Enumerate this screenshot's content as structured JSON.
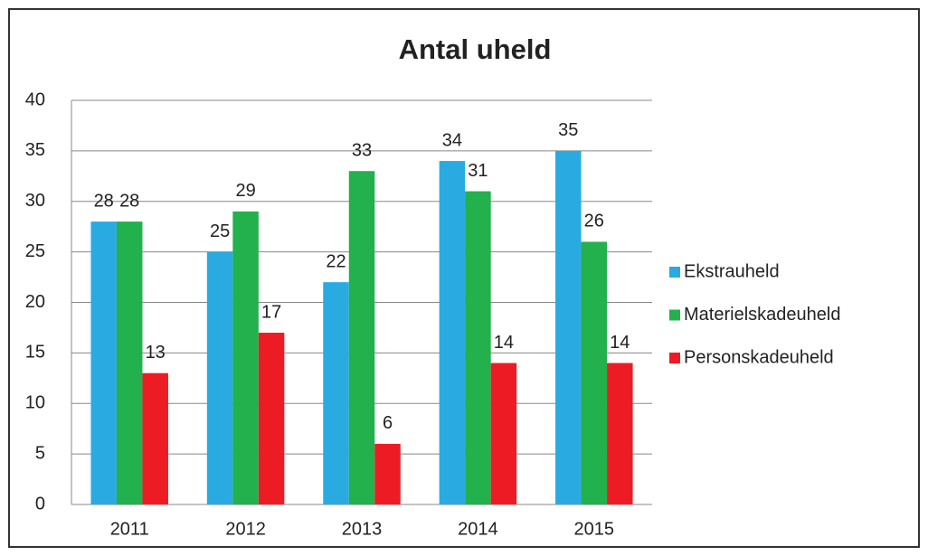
{
  "chart_data": {
    "type": "bar",
    "title": "Antal uheld",
    "categories": [
      "2011",
      "2012",
      "2013",
      "2014",
      "2015"
    ],
    "series": [
      {
        "name": "Ekstrauheld",
        "color": "#29abe2",
        "values": [
          28,
          25,
          22,
          34,
          35
        ]
      },
      {
        "name": "Materielskadeuheld",
        "color": "#22b14c",
        "values": [
          28,
          29,
          33,
          31,
          26
        ]
      },
      {
        "name": "Personskadeuheld",
        "color": "#ed1c24",
        "values": [
          13,
          17,
          6,
          14,
          14
        ]
      }
    ],
    "ylim": [
      0,
      40
    ],
    "yticks": [
      0,
      5,
      10,
      15,
      20,
      25,
      30,
      35,
      40
    ],
    "grid": true,
    "legend": "right"
  }
}
